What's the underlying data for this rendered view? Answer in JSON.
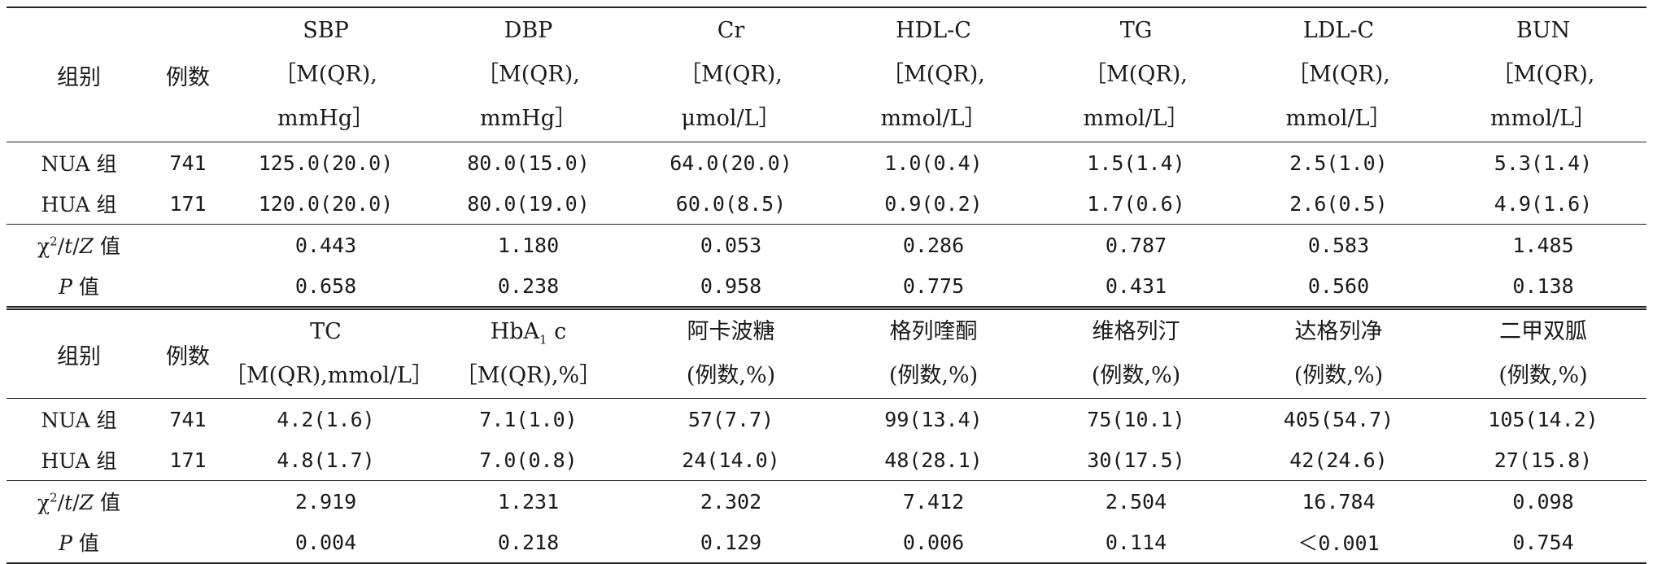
{
  "section1": {
    "header": {
      "group": "组别",
      "count": "例数",
      "columns": [
        {
          "name": "SBP",
          "unit1": "［M(QR),",
          "unit2": "mmHg］"
        },
        {
          "name": "DBP",
          "unit1": "［M(QR),",
          "unit2": "mmHg］"
        },
        {
          "name": "Cr",
          "unit1": "［M(QR),",
          "unit2": "μmol/L］"
        },
        {
          "name": "HDL-C",
          "unit1": "［M(QR),",
          "unit2": "mmol/L］"
        },
        {
          "name": "TG",
          "unit1": "［M(QR),",
          "unit2": "mmol/L］"
        },
        {
          "name": "LDL-C",
          "unit1": "［M(QR),",
          "unit2": "mmol/L］"
        },
        {
          "name": "BUN",
          "unit1": "［M(QR),",
          "unit2": "mmol/L］"
        }
      ]
    },
    "rows": [
      {
        "group": "NUA 组",
        "count": "741",
        "values": [
          "125.0(20.0)",
          "80.0(15.0)",
          "64.0(20.0)",
          "1.0(0.4)",
          "1.5(1.4)",
          "2.5(1.0)",
          "5.3(1.4)"
        ]
      },
      {
        "group": "HUA 组",
        "count": "171",
        "values": [
          "120.0(20.0)",
          "80.0(19.0)",
          "60.0(8.5)",
          "0.9(0.2)",
          "1.7(0.6)",
          "2.6(0.5)",
          "4.9(1.6)"
        ]
      }
    ],
    "stats": {
      "stat_label": {
        "chi": "χ",
        "sup": "2",
        "t": "t",
        "z": "Z",
        "suffix": " 值"
      },
      "stat_values": [
        "0.443",
        "1.180",
        "0.053",
        "0.286",
        "0.787",
        "0.583",
        "1.485"
      ],
      "p_label": {
        "p": "P",
        "suffix": " 值"
      },
      "p_values": [
        "0.658",
        "0.238",
        "0.958",
        "0.775",
        "0.431",
        "0.560",
        "0.138"
      ]
    }
  },
  "section2": {
    "header": {
      "group": "组别",
      "count": "例数",
      "columns": [
        {
          "name": "TC",
          "unit": "［M(QR),mmol/L］"
        },
        {
          "name_base": "HbA",
          "name_sub": "1",
          "name_tail": "c",
          "unit": "［M(QR),%］"
        },
        {
          "name": "阿卡波糖",
          "unit": "(例数,%)"
        },
        {
          "name": "格列喹酮",
          "unit": "(例数,%)"
        },
        {
          "name": "维格列汀",
          "unit": "(例数,%)"
        },
        {
          "name": "达格列净",
          "unit": "(例数,%)"
        },
        {
          "name": "二甲双胍",
          "unit": "(例数,%)"
        }
      ]
    },
    "rows": [
      {
        "group": "NUA 组",
        "count": "741",
        "values": [
          "4.2(1.6)",
          "7.1(1.0)",
          "57(7.7)",
          "99(13.4)",
          "75(10.1)",
          "405(54.7)",
          "105(14.2)"
        ]
      },
      {
        "group": "HUA 组",
        "count": "171",
        "values": [
          "4.8(1.7)",
          "7.0(0.8)",
          "24(14.0)",
          "48(28.1)",
          "30(17.5)",
          "42(24.6)",
          "27(15.8)"
        ]
      }
    ],
    "stats": {
      "stat_values": [
        "2.919",
        "1.231",
        "2.302",
        "7.412",
        "2.504",
        "16.784",
        "0.098"
      ],
      "p_values": [
        "0.004",
        "0.218",
        "0.129",
        "0.006",
        "0.114",
        "＜0.001",
        "0.754"
      ]
    }
  }
}
